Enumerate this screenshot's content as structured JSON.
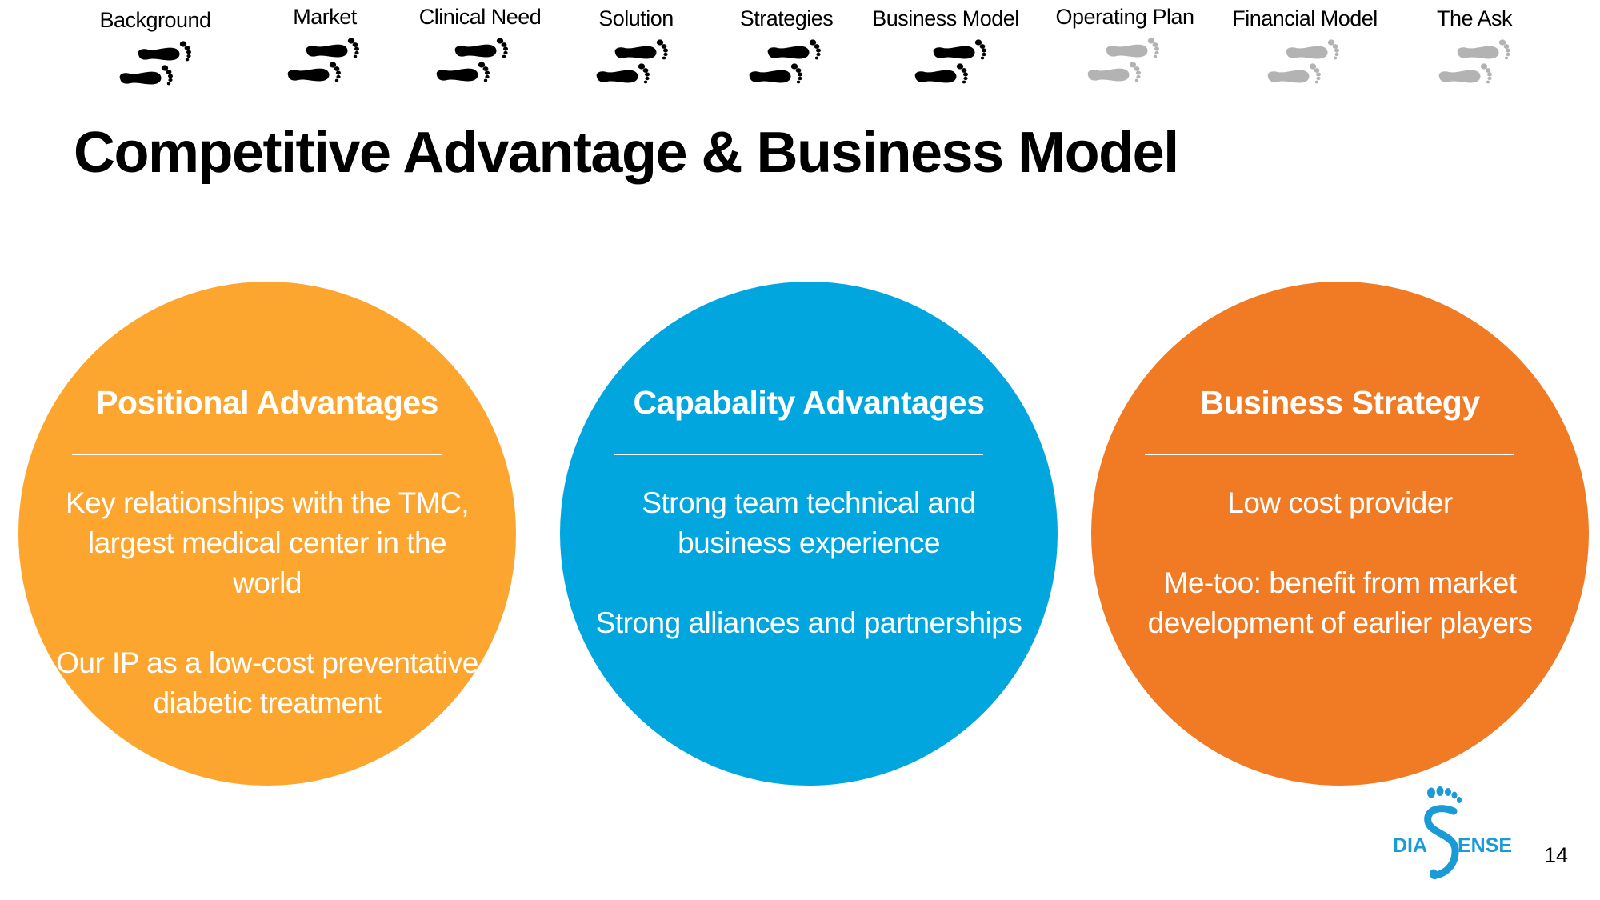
{
  "colors": {
    "step_done": "#000000",
    "step_todo": "#b3b3b3",
    "circle_positional": "#fca630",
    "circle_capability": "#02a6df",
    "circle_strategy": "#f07b24",
    "logo": "#1a9bd7"
  },
  "nav": {
    "icon": "footprints-icon",
    "steps": [
      {
        "label": "Background",
        "status": "done"
      },
      {
        "label": "Market",
        "status": "done"
      },
      {
        "label": "Clinical Need",
        "status": "done"
      },
      {
        "label": "Solution",
        "status": "done"
      },
      {
        "label": "Strategies",
        "status": "done"
      },
      {
        "label": "Business Model",
        "status": "done"
      },
      {
        "label": "Operating Plan",
        "status": "todo"
      },
      {
        "label": "Financial Model",
        "status": "todo"
      },
      {
        "label": "The Ask",
        "status": "todo"
      }
    ]
  },
  "page": {
    "title": "Competitive Advantage & Business Model",
    "number": "14"
  },
  "circles": [
    {
      "heading": "Positional Advantages",
      "paragraphs": [
        "Key relationships with the TMC, largest medical center in the world",
        "Our IP as a  low-cost preventative diabetic treatment"
      ]
    },
    {
      "heading": "Capabality Advantages",
      "paragraphs": [
        "Strong team technical and business experience",
        "Strong alliances and partnerships"
      ]
    },
    {
      "heading": "Business Strategy",
      "paragraphs": [
        "Low cost provider",
        "Me-too: benefit from market development of earlier players"
      ]
    }
  ],
  "logo": {
    "left_text": "DIA",
    "right_text": "ENSE"
  }
}
